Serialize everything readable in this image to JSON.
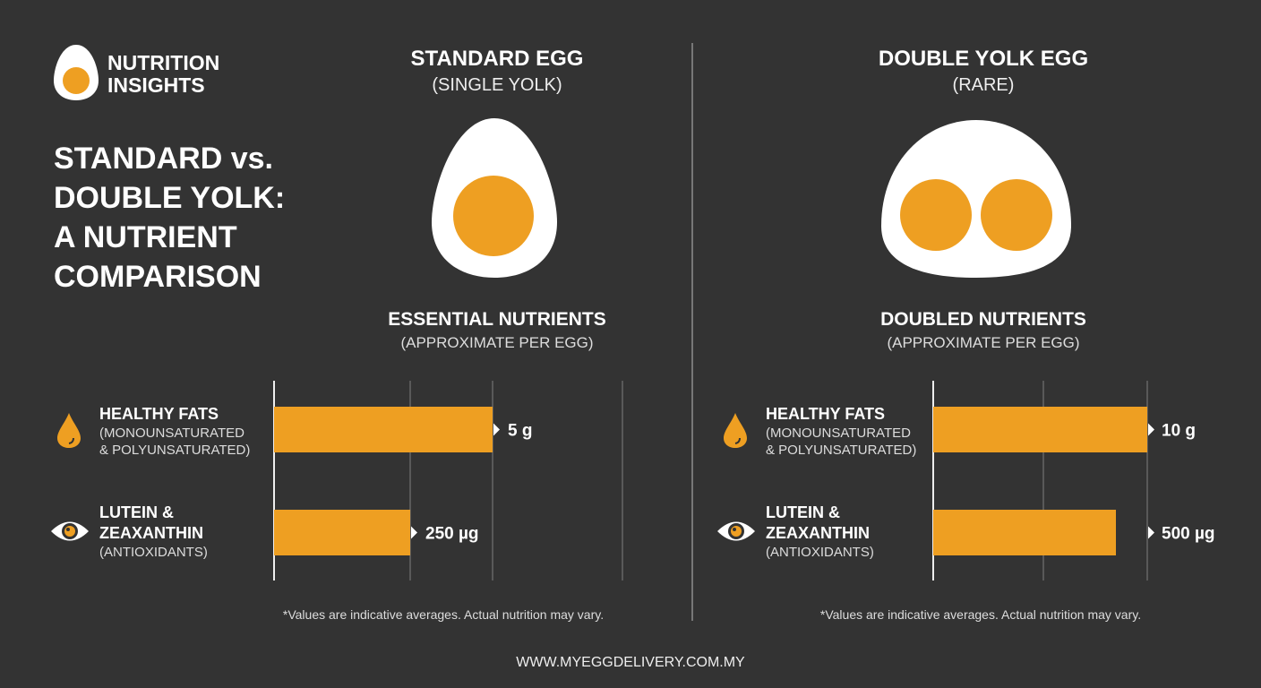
{
  "logo": {
    "line1": "NUTRITION",
    "line2": "INSIGHTS"
  },
  "title": {
    "line1": "STANDARD vs.",
    "line2": "DOUBLE YOLK:",
    "line3": "A NUTRIENT",
    "line4": "COMPARISON"
  },
  "colors": {
    "background": "#333333",
    "yolk": "#ee9f22",
    "white": "#ffffff"
  },
  "chart_data": [
    {
      "type": "bar",
      "orientation": "horizontal",
      "column_title": "STANDARD EGG",
      "column_subtitle": "(SINGLE YOLK)",
      "title": "ESSENTIAL NUTRIENTS",
      "subtitle": "(APPROXIMATE PER EGG)",
      "grid": true,
      "categories": [
        {
          "name": "HEALTHY FATS",
          "sub1": "(MONOUNSATURATED",
          "sub2": "& POLYUNSATURATED)",
          "icon": "drop-icon"
        },
        {
          "name1": "LUTEIN &",
          "name2": "ZEAXANTHIN",
          "sub1": "(ANTIOXIDANTS)",
          "icon": "eye-icon"
        }
      ],
      "values": [
        5,
        250
      ],
      "labels": [
        "5 g",
        "250 µg"
      ],
      "units": [
        "g",
        "µg"
      ],
      "footnote": "*Values are indicative averages. Actual nutrition may vary."
    },
    {
      "type": "bar",
      "orientation": "horizontal",
      "column_title": "DOUBLE YOLK EGG",
      "column_subtitle": "(RARE)",
      "title": "DOUBLED NUTRIENTS",
      "subtitle": "(APPROXIMATE PER EGG)",
      "grid": true,
      "categories": [
        {
          "name": "HEALTHY FATS",
          "sub1": "(MONOUNSATURATED",
          "sub2": "& POLYUNSATURATED)",
          "icon": "drop-icon"
        },
        {
          "name1": "LUTEIN &",
          "name2": "ZEAXANTHIN",
          "sub1": "(ANTIOXIDANTS)",
          "icon": "eye-icon"
        }
      ],
      "values": [
        10,
        500
      ],
      "labels": [
        "10 g",
        "500 µg"
      ],
      "units": [
        "g",
        "µg"
      ],
      "footnote": "*Values are indicative averages. Actual nutrition may vary."
    }
  ],
  "website": "WWW.MYEGGDELIVERY.COM.MY"
}
